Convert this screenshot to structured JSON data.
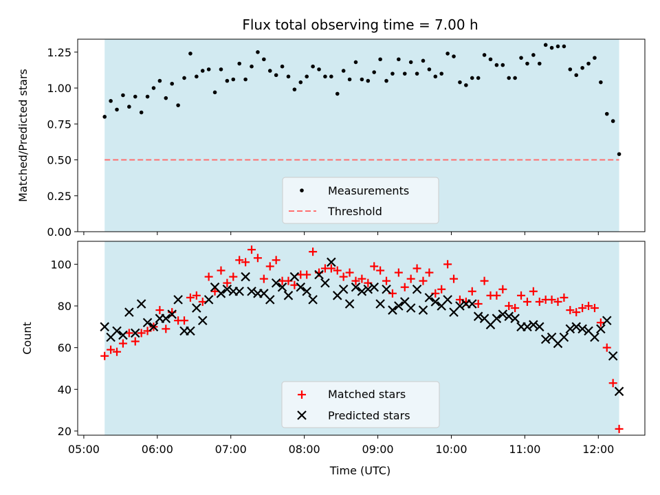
{
  "title": "Flux total observing time = 7.00 h",
  "xlabel": "Time (UTC)",
  "colors": {
    "shade": "#add8e6",
    "measurement": "#000000",
    "threshold": "#ff6f6f",
    "matched": "#ff0000",
    "predicted": "#000000"
  },
  "chart_data": [
    {
      "type": "scatter",
      "ylabel": "Matched/Predicted stars",
      "ylim": [
        0,
        1.34
      ],
      "yticks": [
        "0.00",
        "0.25",
        "0.50",
        "0.75",
        "1.00",
        "1.25"
      ],
      "shaded_span": [
        "05:17",
        "12:17"
      ],
      "threshold": 0.5,
      "legend": {
        "position": "lower center",
        "entries": [
          "Measurements",
          "Threshold"
        ]
      },
      "series": [
        {
          "name": "Measurements",
          "marker": "dot",
          "x": [
            "05:17",
            "05:22",
            "05:27",
            "05:32",
            "05:37",
            "05:42",
            "05:47",
            "05:52",
            "05:57",
            "06:02",
            "06:07",
            "06:12",
            "06:17",
            "06:22",
            "06:27",
            "06:32",
            "06:37",
            "06:42",
            "06:47",
            "06:52",
            "06:57",
            "07:02",
            "07:07",
            "07:12",
            "07:17",
            "07:22",
            "07:27",
            "07:32",
            "07:37",
            "07:42",
            "07:47",
            "07:52",
            "07:57",
            "08:02",
            "08:07",
            "08:12",
            "08:17",
            "08:22",
            "08:27",
            "08:32",
            "08:37",
            "08:42",
            "08:47",
            "08:52",
            "08:57",
            "09:02",
            "09:07",
            "09:12",
            "09:17",
            "09:22",
            "09:27",
            "09:32",
            "09:37",
            "09:42",
            "09:47",
            "09:52",
            "09:57",
            "10:02",
            "10:07",
            "10:12",
            "10:17",
            "10:22",
            "10:27",
            "10:32",
            "10:37",
            "10:42",
            "10:47",
            "10:52",
            "10:57",
            "11:02",
            "11:07",
            "11:12",
            "11:17",
            "11:22",
            "11:27",
            "11:32",
            "11:37",
            "11:42",
            "11:47",
            "11:52",
            "11:57",
            "12:02",
            "12:07",
            "12:12",
            "12:17"
          ],
          "y": [
            0.8,
            0.91,
            0.85,
            0.95,
            0.87,
            0.94,
            0.83,
            0.94,
            1.0,
            1.05,
            0.93,
            1.03,
            0.88,
            1.07,
            1.24,
            1.08,
            1.12,
            1.13,
            0.97,
            1.13,
            1.05,
            1.06,
            1.17,
            1.06,
            1.15,
            1.25,
            1.2,
            1.12,
            1.09,
            1.15,
            1.08,
            0.99,
            1.04,
            1.08,
            1.15,
            1.13,
            1.08,
            1.08,
            0.96,
            1.12,
            1.06,
            1.18,
            1.06,
            1.05,
            1.11,
            1.2,
            1.05,
            1.1,
            1.2,
            1.1,
            1.18,
            1.1,
            1.19,
            1.13,
            1.08,
            1.1,
            1.24,
            1.22,
            1.04,
            1.02,
            1.07,
            1.07,
            1.23,
            1.2,
            1.16,
            1.16,
            1.07,
            1.07,
            1.21,
            1.17,
            1.23,
            1.17,
            1.3,
            1.28,
            1.29,
            1.29,
            1.13,
            1.09,
            1.14,
            1.17,
            1.21,
            1.04,
            0.82,
            0.77,
            0.54
          ]
        }
      ]
    },
    {
      "type": "scatter",
      "ylabel": "Count",
      "ylim": [
        18,
        111
      ],
      "yticks": [
        "20",
        "40",
        "60",
        "80",
        "100"
      ],
      "shaded_span": [
        "05:17",
        "12:17"
      ],
      "legend": {
        "position": "lower center",
        "entries": [
          "Matched stars",
          "Predicted stars"
        ]
      },
      "x": [
        "05:17",
        "05:22",
        "05:27",
        "05:32",
        "05:37",
        "05:42",
        "05:47",
        "05:52",
        "05:57",
        "06:02",
        "06:07",
        "06:12",
        "06:17",
        "06:22",
        "06:27",
        "06:32",
        "06:37",
        "06:42",
        "06:47",
        "06:52",
        "06:57",
        "07:02",
        "07:07",
        "07:12",
        "07:17",
        "07:22",
        "07:27",
        "07:32",
        "07:37",
        "07:42",
        "07:47",
        "07:52",
        "07:57",
        "08:02",
        "08:07",
        "08:12",
        "08:17",
        "08:22",
        "08:27",
        "08:32",
        "08:37",
        "08:42",
        "08:47",
        "08:52",
        "08:57",
        "09:02",
        "09:07",
        "09:12",
        "09:17",
        "09:22",
        "09:27",
        "09:32",
        "09:37",
        "09:42",
        "09:47",
        "09:52",
        "09:57",
        "10:02",
        "10:07",
        "10:12",
        "10:17",
        "10:22",
        "10:27",
        "10:32",
        "10:37",
        "10:42",
        "10:47",
        "10:52",
        "10:57",
        "11:02",
        "11:07",
        "11:12",
        "11:17",
        "11:22",
        "11:27",
        "11:32",
        "11:37",
        "11:42",
        "11:47",
        "11:52",
        "11:57",
        "12:02",
        "12:07",
        "12:12",
        "12:17"
      ],
      "series": [
        {
          "name": "Matched stars",
          "marker": "plus",
          "values": [
            56,
            59,
            58,
            62,
            67,
            63,
            67,
            68,
            70,
            78,
            69,
            77,
            73,
            73,
            84,
            85,
            82,
            94,
            87,
            97,
            91,
            94,
            102,
            101,
            107,
            103,
            93,
            99,
            102,
            92,
            92,
            90,
            95,
            95,
            106,
            96,
            98,
            98,
            97,
            94,
            96,
            92,
            93,
            91,
            99,
            97,
            92,
            86,
            96,
            89,
            93,
            98,
            92,
            96,
            86,
            88,
            100,
            93,
            83,
            82,
            87,
            81,
            92,
            85,
            85,
            88,
            80,
            79,
            85,
            82,
            87,
            82,
            83,
            83,
            82,
            84,
            78,
            77,
            79,
            80,
            79,
            72,
            60,
            43,
            21
          ]
        },
        {
          "name": "Predicted stars",
          "marker": "cross",
          "values": [
            70,
            65,
            68,
            66,
            77,
            67,
            81,
            72,
            70,
            74,
            74,
            76,
            83,
            68,
            68,
            79,
            73,
            83,
            89,
            86,
            88,
            87,
            87,
            94,
            87,
            86,
            86,
            83,
            91,
            89,
            85,
            94,
            89,
            87,
            83,
            95,
            91,
            101,
            85,
            88,
            81,
            89,
            87,
            88,
            89,
            81,
            88,
            78,
            80,
            82,
            79,
            88,
            78,
            84,
            82,
            80,
            83,
            77,
            80,
            81,
            81,
            75,
            74,
            71,
            74,
            76,
            75,
            74,
            70,
            70,
            71,
            70,
            64,
            65,
            62,
            65,
            69,
            70,
            69,
            68,
            65,
            69,
            73,
            56,
            39
          ]
        }
      ]
    }
  ],
  "xaxis": {
    "ticks": [
      "05:00",
      "06:00",
      "07:00",
      "08:00",
      "09:00",
      "10:00",
      "11:00",
      "12:00"
    ],
    "range": [
      "04:55",
      "12:38"
    ]
  }
}
